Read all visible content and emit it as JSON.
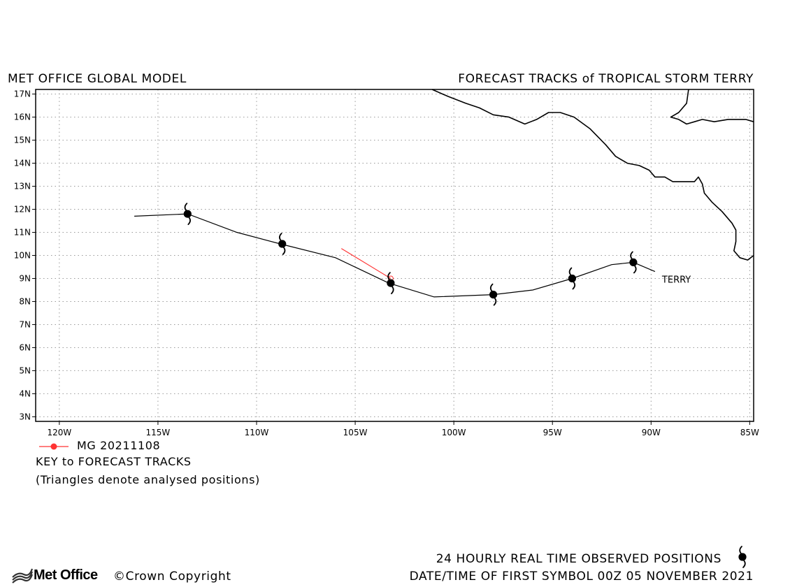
{
  "header": {
    "left_title": "MET OFFICE GLOBAL MODEL",
    "right_title": "FORECAST TRACKS of TROPICAL STORM TERRY"
  },
  "map": {
    "lon_range": [
      -121.2,
      -84.8
    ],
    "lat_range": [
      2.8,
      17.2
    ],
    "lon_ticks": [
      -120,
      -115,
      -110,
      -105,
      -100,
      -95,
      -90,
      -85
    ],
    "lon_tick_labels": [
      "120W",
      "115W",
      "110W",
      "105W",
      "100W",
      "95W",
      "90W",
      "85W"
    ],
    "lat_ticks": [
      3,
      4,
      5,
      6,
      7,
      8,
      9,
      10,
      11,
      12,
      13,
      14,
      15,
      16,
      17
    ],
    "lat_tick_labels": [
      "3N",
      "4N",
      "5N",
      "6N",
      "7N",
      "8N",
      "9N",
      "10N",
      "11N",
      "12N",
      "13N",
      "14N",
      "15N",
      "16N",
      "17N"
    ],
    "grid": true
  },
  "observed_track": {
    "storm_label": "TERRY",
    "color": "#000000",
    "points": [
      {
        "lon": -116.2,
        "lat": 11.7
      },
      {
        "lon": -113.5,
        "lat": 11.8
      },
      {
        "lon": -111.0,
        "lat": 11.0
      },
      {
        "lon": -108.8,
        "lat": 10.5
      },
      {
        "lon": -106.0,
        "lat": 9.9
      },
      {
        "lon": -103.3,
        "lat": 8.8
      },
      {
        "lon": -101.0,
        "lat": 8.2
      },
      {
        "lon": -98.0,
        "lat": 8.3
      },
      {
        "lon": -96.0,
        "lat": 8.5
      },
      {
        "lon": -94.0,
        "lat": 9.0
      },
      {
        "lon": -92.0,
        "lat": 9.6
      },
      {
        "lon": -90.9,
        "lat": 9.7
      },
      {
        "lon": -89.8,
        "lat": 9.3
      }
    ],
    "daily_symbols": [
      {
        "lon": -113.5,
        "lat": 11.8
      },
      {
        "lon": -108.7,
        "lat": 10.5
      },
      {
        "lon": -103.2,
        "lat": 8.8
      },
      {
        "lon": -98.0,
        "lat": 8.3
      },
      {
        "lon": -94.0,
        "lat": 9.0
      },
      {
        "lon": -90.9,
        "lat": 9.7
      }
    ]
  },
  "forecast_tracks": [
    {
      "name": "MG 20211108",
      "color": "#ff3333",
      "points": [
        {
          "lon": -103.2,
          "lat": 9.0
        },
        {
          "lon": -105.7,
          "lat": 10.3
        }
      ]
    }
  ],
  "coastline": [
    [
      {
        "lon": -101.1,
        "lat": 17.2
      },
      {
        "lon": -100.3,
        "lat": 16.9
      },
      {
        "lon": -99.4,
        "lat": 16.6
      },
      {
        "lon": -98.7,
        "lat": 16.4
      },
      {
        "lon": -98.0,
        "lat": 16.1
      },
      {
        "lon": -97.2,
        "lat": 16.0
      },
      {
        "lon": -96.4,
        "lat": 15.7
      },
      {
        "lon": -95.8,
        "lat": 15.9
      },
      {
        "lon": -95.2,
        "lat": 16.2
      },
      {
        "lon": -94.6,
        "lat": 16.2
      },
      {
        "lon": -93.9,
        "lat": 16.0
      },
      {
        "lon": -93.1,
        "lat": 15.5
      },
      {
        "lon": -92.3,
        "lat": 14.8
      },
      {
        "lon": -91.8,
        "lat": 14.3
      },
      {
        "lon": -91.2,
        "lat": 14.0
      },
      {
        "lon": -90.6,
        "lat": 13.9
      },
      {
        "lon": -90.1,
        "lat": 13.7
      },
      {
        "lon": -89.8,
        "lat": 13.4
      },
      {
        "lon": -89.3,
        "lat": 13.4
      },
      {
        "lon": -88.9,
        "lat": 13.2
      },
      {
        "lon": -88.2,
        "lat": 13.2
      },
      {
        "lon": -87.8,
        "lat": 13.2
      },
      {
        "lon": -87.6,
        "lat": 13.4
      },
      {
        "lon": -87.4,
        "lat": 13.1
      },
      {
        "lon": -87.3,
        "lat": 12.7
      },
      {
        "lon": -86.9,
        "lat": 12.3
      },
      {
        "lon": -86.4,
        "lat": 11.9
      },
      {
        "lon": -85.9,
        "lat": 11.4
      },
      {
        "lon": -85.7,
        "lat": 11.1
      },
      {
        "lon": -85.7,
        "lat": 10.6
      },
      {
        "lon": -85.8,
        "lat": 10.2
      },
      {
        "lon": -85.5,
        "lat": 9.9
      },
      {
        "lon": -85.1,
        "lat": 9.8
      },
      {
        "lon": -84.8,
        "lat": 10.0
      }
    ],
    [
      {
        "lon": -88.1,
        "lat": 17.2
      },
      {
        "lon": -88.2,
        "lat": 16.6
      },
      {
        "lon": -88.6,
        "lat": 16.2
      },
      {
        "lon": -89.0,
        "lat": 16.0
      },
      {
        "lon": -88.6,
        "lat": 15.9
      },
      {
        "lon": -88.2,
        "lat": 15.7
      },
      {
        "lon": -87.8,
        "lat": 15.8
      },
      {
        "lon": -87.4,
        "lat": 15.9
      },
      {
        "lon": -86.8,
        "lat": 15.8
      },
      {
        "lon": -86.1,
        "lat": 15.9
      },
      {
        "lon": -85.6,
        "lat": 15.9
      },
      {
        "lon": -85.2,
        "lat": 15.9
      },
      {
        "lon": -84.8,
        "lat": 15.8
      }
    ]
  ],
  "key": {
    "entry_label": "MG 20211108",
    "title": "KEY to FORECAST TRACKS",
    "note": "(Triangles denote analysed positions)"
  },
  "footer": {
    "observed_note": "24 HOURLY REAL TIME OBSERVED POSITIONS",
    "first_symbol": "DATE/TIME OF FIRST SYMBOL 00Z 05 NOVEMBER 2021",
    "logo_text": "Met Office",
    "copyright": "©Crown Copyright"
  },
  "icons": {
    "storm_symbol": "tropical-storm-icon",
    "logo_mark": "met-office-waves-icon"
  }
}
